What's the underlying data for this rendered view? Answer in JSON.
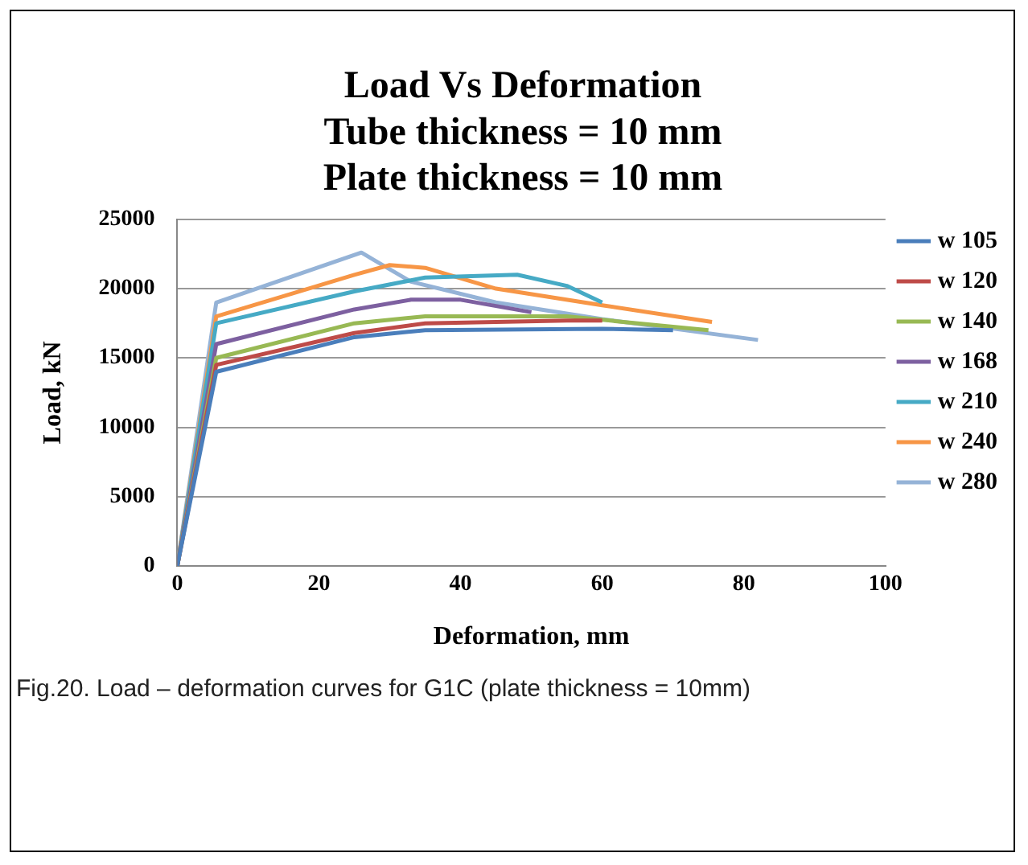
{
  "chart_data": {
    "type": "line",
    "title": "Load Vs Deformation\nTube thickness = 10 mm\nPlate thickness = 10 mm",
    "xlabel": "Deformation, mm",
    "ylabel": "Load, kN",
    "xlim": [
      0,
      100
    ],
    "xticks": [
      0,
      20,
      40,
      60,
      80,
      100
    ],
    "ylim": [
      0,
      25000
    ],
    "yticks": [
      0,
      5000,
      10000,
      15000,
      20000,
      25000
    ],
    "grid": "y",
    "legend": "right",
    "marker": "none",
    "line_style": "solid",
    "annotations": [
      "Fig.20. Load – deformation curves for G1C (plate thickness = 10mm)"
    ],
    "series": [
      {
        "name": "w 105",
        "color": "#4a7ebb",
        "x": [
          0,
          5.5,
          25,
          35,
          60,
          70
        ],
        "values": [
          0,
          14000,
          16500,
          17000,
          17100,
          17000
        ]
      },
      {
        "name": "w 120",
        "color": "#be4b48",
        "x": [
          0,
          5.5,
          25,
          35,
          55,
          60
        ],
        "values": [
          0,
          14500,
          16800,
          17500,
          17700,
          17700
        ]
      },
      {
        "name": "w 140",
        "color": "#98b954",
        "x": [
          0,
          5.5,
          25,
          35,
          55,
          75
        ],
        "values": [
          0,
          15000,
          17500,
          18000,
          18000,
          17000
        ]
      },
      {
        "name": "w 168",
        "color": "#7d60a0",
        "x": [
          0,
          5.5,
          25,
          33,
          40,
          50
        ],
        "values": [
          0,
          16000,
          18500,
          19200,
          19200,
          18300
        ]
      },
      {
        "name": "w 210",
        "color": "#46aac5",
        "x": [
          0,
          5.5,
          25,
          35,
          48,
          55,
          60
        ],
        "values": [
          0,
          17500,
          19800,
          20800,
          21000,
          20200,
          19000
        ]
      },
      {
        "name": "w 240",
        "color": "#f79646",
        "x": [
          0,
          5.5,
          25,
          30,
          35,
          45,
          60,
          75.5
        ],
        "values": [
          0,
          18000,
          21000,
          21700,
          21500,
          20000,
          18800,
          17600
        ]
      },
      {
        "name": "w 280",
        "color": "#95b3d7",
        "x": [
          0,
          5.5,
          26,
          28,
          33,
          45,
          60,
          82
        ],
        "values": [
          0,
          19000,
          22600,
          22000,
          20500,
          19000,
          17800,
          16300
        ]
      }
    ]
  }
}
